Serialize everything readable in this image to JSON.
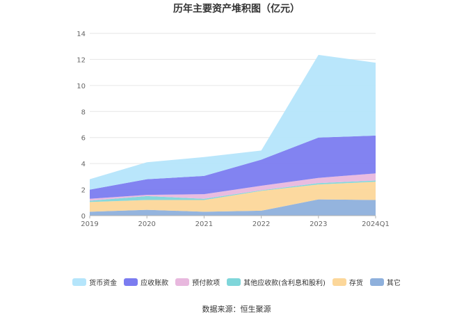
{
  "chart_data": {
    "type": "area",
    "stacked": true,
    "title": "历年主要资产堆积图（亿元）",
    "categories": [
      "2019",
      "2020",
      "2021",
      "2022",
      "2023",
      "2024Q1"
    ],
    "ylim": [
      0,
      14
    ],
    "yticks": [
      0,
      2,
      4,
      6,
      8,
      10,
      12,
      14
    ],
    "grid": true,
    "legend_position": "bottom",
    "series": [
      {
        "name": "其它",
        "color": "#8eb0dc",
        "values": [
          0.3,
          0.45,
          0.3,
          0.38,
          1.25,
          1.2
        ]
      },
      {
        "name": "存货",
        "color": "#fcd79a",
        "values": [
          0.75,
          0.75,
          0.9,
          1.52,
          1.15,
          1.4
        ]
      },
      {
        "name": "其他应收款(含利息和股利)",
        "color": "#7fd6da",
        "values": [
          0.1,
          0.3,
          0.1,
          0.05,
          0.1,
          0.1
        ]
      },
      {
        "name": "预付款项",
        "color": "#e8b8de",
        "values": [
          0.15,
          0.1,
          0.35,
          0.35,
          0.4,
          0.55
        ]
      },
      {
        "name": "应收账款",
        "color": "#7b7cf0",
        "values": [
          0.7,
          1.2,
          1.4,
          2.0,
          3.1,
          2.9
        ]
      },
      {
        "name": "货币资金",
        "color": "#b5e5fb",
        "values": [
          0.8,
          1.3,
          1.45,
          0.7,
          6.35,
          5.6
        ]
      }
    ],
    "source": "数据来源：恒生聚源"
  }
}
